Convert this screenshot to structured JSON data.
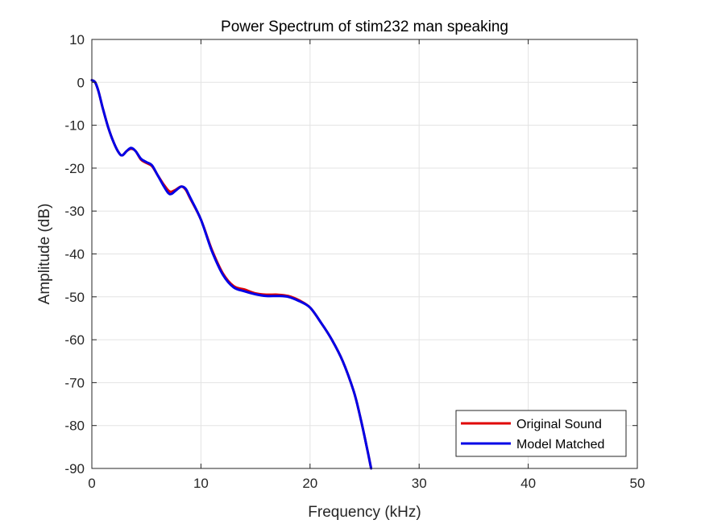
{
  "chart_data": {
    "type": "line",
    "title": "Power Spectrum of stim232 man speaking",
    "xlabel": "Frequency (kHz)",
    "ylabel": "Amplitude (dB)",
    "xlim": [
      0,
      50
    ],
    "ylim": [
      -90,
      10
    ],
    "xticks": [
      0,
      10,
      20,
      30,
      40,
      50
    ],
    "yticks": [
      10,
      0,
      -10,
      -20,
      -30,
      -40,
      -50,
      -60,
      -70,
      -80,
      -90
    ],
    "grid": true,
    "legend_position": "bottom-right",
    "series": [
      {
        "name": "Original Sound",
        "color": "#e00000",
        "x": [
          0,
          0.3,
          0.6,
          1.0,
          1.5,
          2.0,
          2.5,
          2.8,
          3.2,
          3.6,
          4.0,
          4.5,
          5.0,
          5.5,
          6.0,
          6.5,
          7.0,
          7.3,
          7.7,
          8.2,
          8.6,
          9.0,
          10.0,
          11.0,
          12.0,
          13.0,
          14.0,
          15.0,
          16.0,
          17.0,
          18.0,
          19.0,
          20.0,
          21.0,
          22.0,
          23.0,
          24.0,
          24.6,
          25.2,
          25.6
        ],
        "y": [
          0.5,
          0,
          -2,
          -6,
          -10.5,
          -14,
          -16.5,
          -17,
          -16,
          -15.5,
          -16,
          -18,
          -18.8,
          -19.5,
          -21.5,
          -23.5,
          -25.2,
          -25.5,
          -25,
          -24.3,
          -25,
          -27,
          -32,
          -39,
          -44.5,
          -47.5,
          -48.3,
          -49.2,
          -49.5,
          -49.5,
          -49.8,
          -50.8,
          -52.5,
          -56,
          -60,
          -65,
          -72,
          -78,
          -85,
          -90
        ]
      },
      {
        "name": "Model Matched",
        "color": "#0000e6",
        "x": [
          0,
          0.3,
          0.6,
          1.0,
          1.5,
          2.0,
          2.5,
          2.8,
          3.2,
          3.6,
          4.0,
          4.5,
          5.0,
          5.5,
          6.0,
          6.5,
          7.0,
          7.3,
          7.7,
          8.2,
          8.6,
          9.0,
          10.0,
          11.0,
          12.0,
          13.0,
          14.0,
          15.0,
          16.0,
          17.0,
          18.0,
          19.0,
          20.0,
          21.0,
          22.0,
          23.0,
          24.0,
          24.6,
          25.2,
          25.6
        ],
        "y": [
          0.5,
          0,
          -2,
          -6,
          -10.5,
          -14,
          -16.5,
          -17,
          -16,
          -15.3,
          -16,
          -17.8,
          -18.6,
          -19.3,
          -21.5,
          -23.8,
          -25.8,
          -26,
          -25.2,
          -24.3,
          -24.8,
          -26.8,
          -32,
          -39.3,
          -44.8,
          -47.8,
          -48.7,
          -49.4,
          -49.8,
          -49.8,
          -50,
          -51,
          -52.5,
          -56,
          -60,
          -65,
          -72,
          -78,
          -85,
          -90
        ]
      }
    ]
  }
}
